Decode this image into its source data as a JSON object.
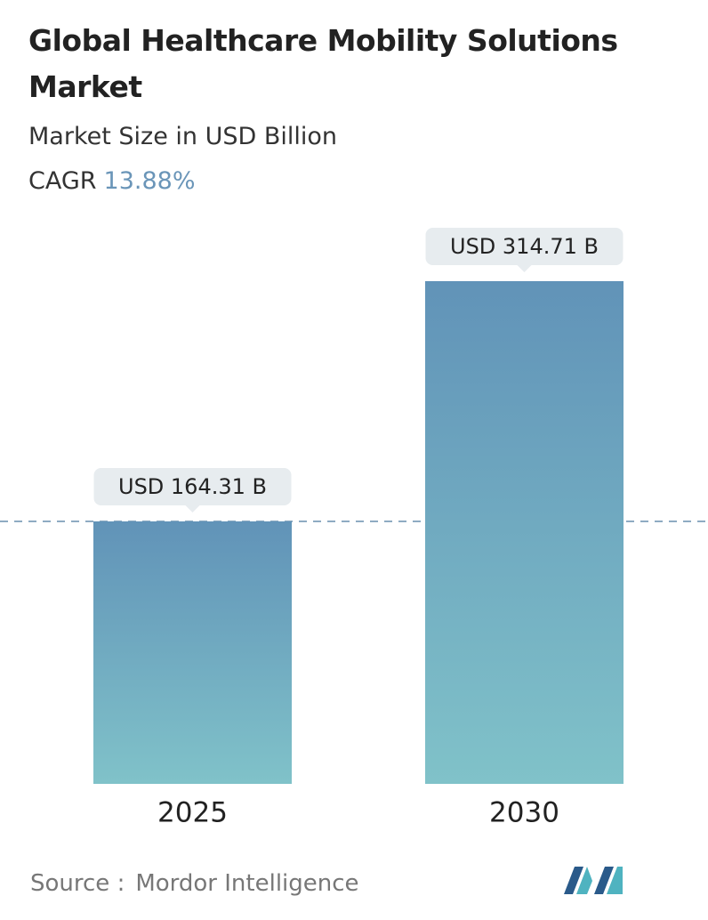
{
  "chart_data": {
    "type": "bar",
    "title": "Global Healthcare Mobility Solutions Market",
    "subtitle": "Market Size in USD Billion",
    "cagr_label": "CAGR",
    "cagr_value": "13.88%",
    "categories": [
      "2025",
      "2030"
    ],
    "values": [
      164.31,
      314.71
    ],
    "value_labels": [
      "USD 164.31 B",
      "USD 314.71 B"
    ],
    "colors": [
      "#6193b8",
      "#80c2c9"
    ],
    "source_label": "Source :",
    "source": "Mordor Intelligence"
  }
}
